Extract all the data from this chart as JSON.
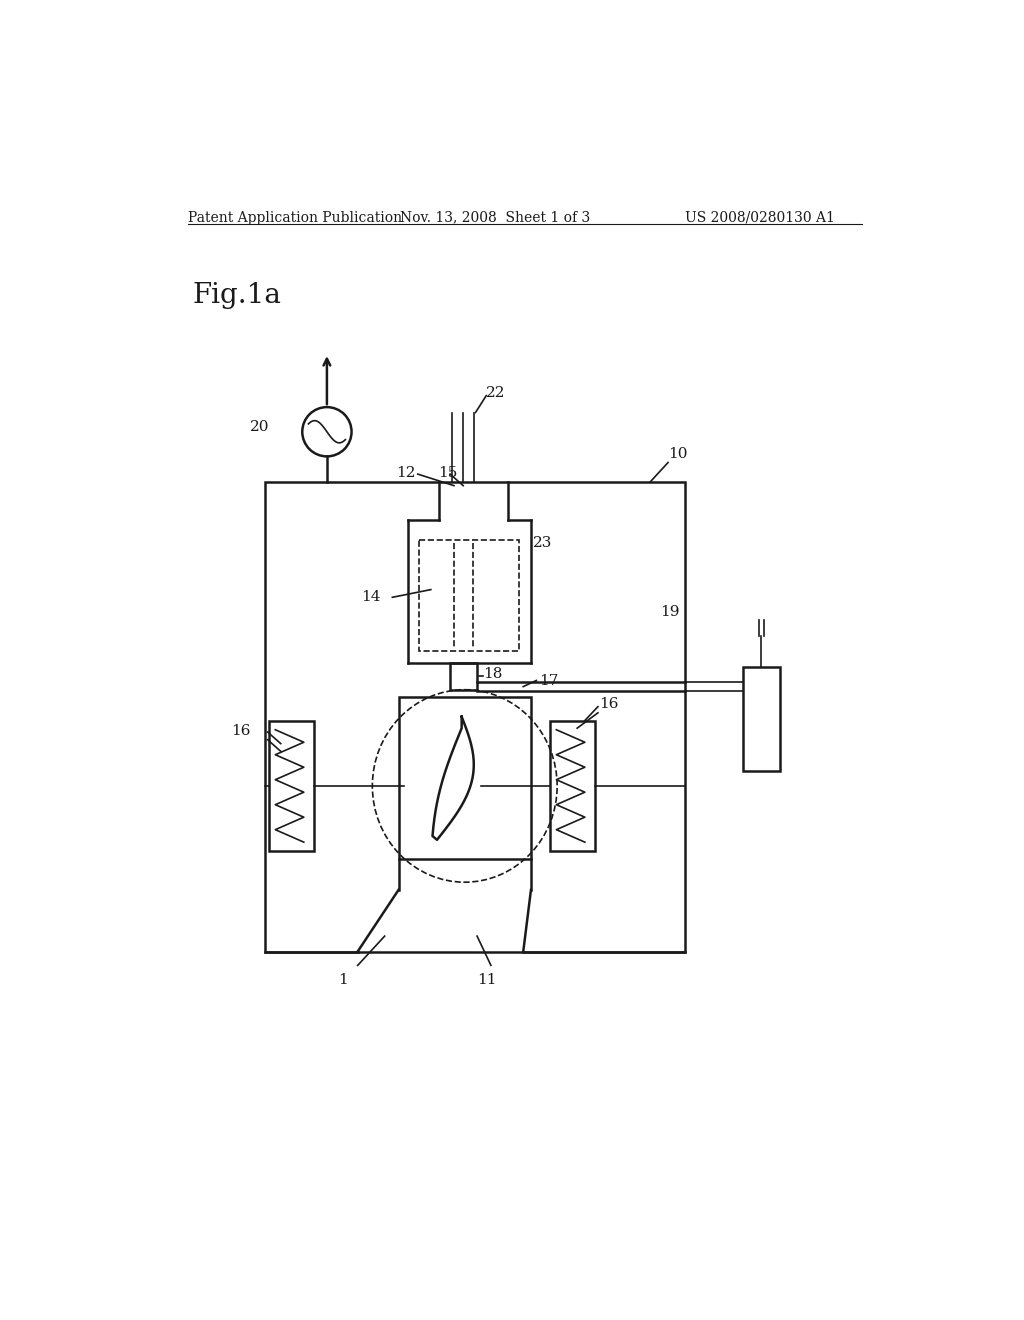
{
  "bg_color": "#ffffff",
  "header_left": "Patent Application Publication",
  "header_middle": "Nov. 13, 2008  Sheet 1 of 3",
  "header_right": "US 2008/0280130 A1",
  "fig_label": "Fig.1a"
}
